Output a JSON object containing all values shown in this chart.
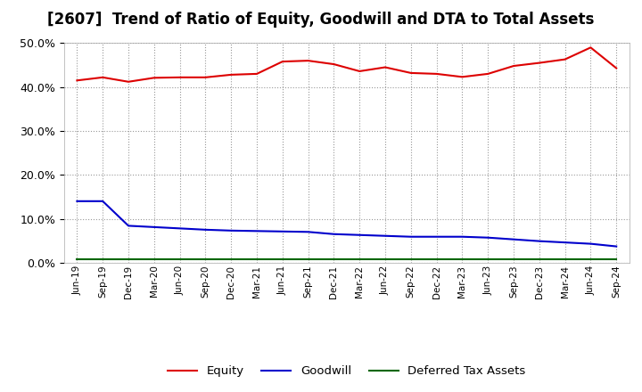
{
  "title": "[2607]  Trend of Ratio of Equity, Goodwill and DTA to Total Assets",
  "x_labels": [
    "Jun-19",
    "Sep-19",
    "Dec-19",
    "Mar-20",
    "Jun-20",
    "Sep-20",
    "Dec-20",
    "Mar-21",
    "Jun-21",
    "Sep-21",
    "Dec-21",
    "Mar-22",
    "Jun-22",
    "Sep-22",
    "Dec-22",
    "Mar-23",
    "Jun-23",
    "Sep-23",
    "Dec-23",
    "Mar-24",
    "Jun-24",
    "Sep-24"
  ],
  "equity": [
    0.415,
    0.422,
    0.412,
    0.421,
    0.422,
    0.422,
    0.428,
    0.43,
    0.458,
    0.46,
    0.452,
    0.436,
    0.445,
    0.432,
    0.43,
    0.423,
    0.43,
    0.448,
    0.455,
    0.463,
    0.49,
    0.443
  ],
  "goodwill": [
    0.14,
    0.14,
    0.084,
    0.081,
    0.078,
    0.075,
    0.073,
    0.072,
    0.071,
    0.07,
    0.065,
    0.063,
    0.061,
    0.059,
    0.059,
    0.059,
    0.057,
    0.053,
    0.049,
    0.046,
    0.043,
    0.037
  ],
  "dta": [
    0.008,
    0.008,
    0.008,
    0.008,
    0.008,
    0.008,
    0.008,
    0.008,
    0.008,
    0.008,
    0.008,
    0.008,
    0.008,
    0.008,
    0.008,
    0.008,
    0.008,
    0.008,
    0.008,
    0.008,
    0.008,
    0.008
  ],
  "equity_color": "#dd0000",
  "goodwill_color": "#0000cc",
  "dta_color": "#006600",
  "ylim": [
    0.0,
    0.5
  ],
  "yticks": [
    0.0,
    0.1,
    0.2,
    0.3,
    0.4,
    0.5
  ],
  "background_color": "#ffffff",
  "plot_bg_color": "#ffffff",
  "grid_color": "#999999",
  "title_fontsize": 12,
  "legend_labels": [
    "Equity",
    "Goodwill",
    "Deferred Tax Assets"
  ]
}
